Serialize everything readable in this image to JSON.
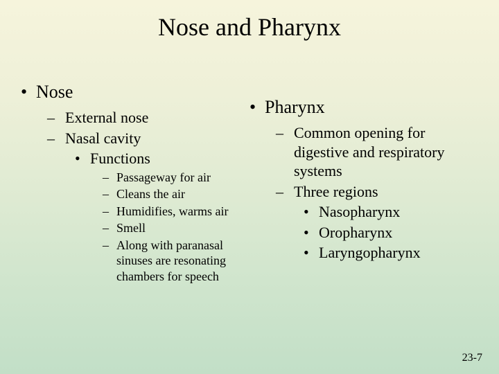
{
  "slide": {
    "title": "Nose and Pharynx",
    "footer": "23-7"
  },
  "left": {
    "heading": "Nose",
    "items": {
      "a": "External nose",
      "b": "Nasal cavity",
      "b_sub": "Functions",
      "funcs": {
        "f1": "Passageway for air",
        "f2": "Cleans the air",
        "f3": "Humidifies, warms air",
        "f4": "Smell",
        "f5": "Along with paranasal sinuses are resonating chambers for speech"
      }
    }
  },
  "right": {
    "heading": "Pharynx",
    "items": {
      "a": "Common opening for digestive and respiratory systems",
      "b": "Three regions",
      "regions": {
        "r1": "Nasopharynx",
        "r2": "Oropharynx",
        "r3": "Laryngopharynx"
      }
    }
  }
}
